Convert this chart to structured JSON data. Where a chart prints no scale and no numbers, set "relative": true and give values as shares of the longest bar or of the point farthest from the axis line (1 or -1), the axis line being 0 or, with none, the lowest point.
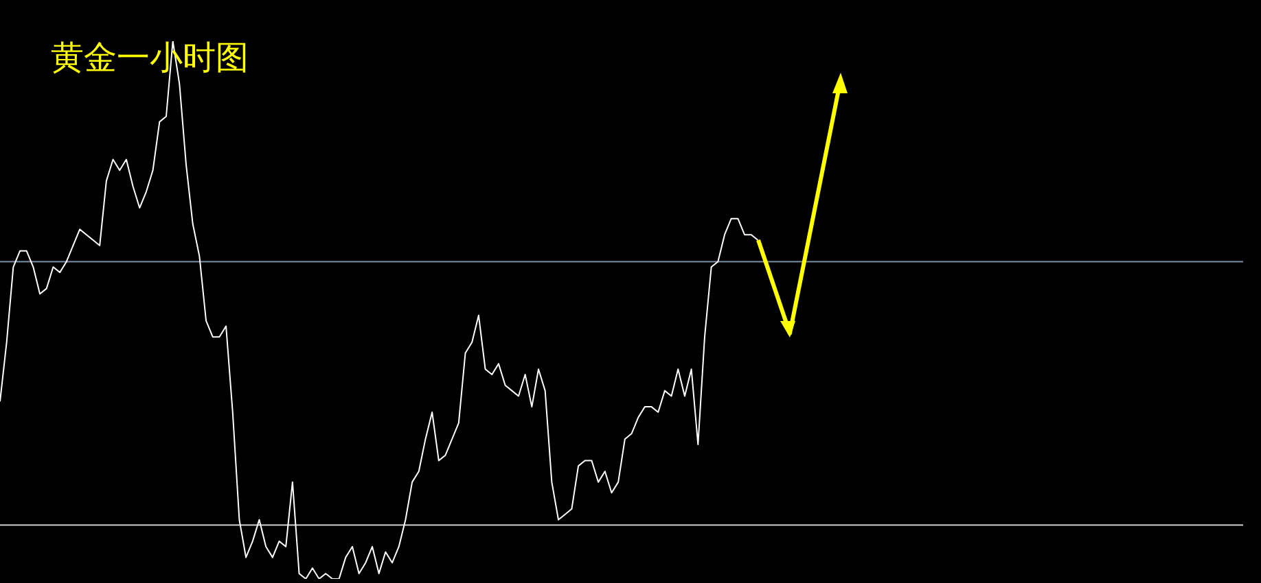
{
  "chart_data": {
    "type": "line",
    "title": "黄金一小时图",
    "relative": true,
    "grid": false,
    "legend": false,
    "marker": "none",
    "line_style": "solid",
    "categories": [
      null,
      null,
      null,
      null,
      null,
      null,
      null,
      null,
      null,
      null,
      null,
      null,
      null,
      null,
      null,
      null,
      null,
      null,
      null,
      null,
      null,
      null,
      null,
      null,
      null,
      null,
      null,
      null,
      null,
      null,
      null,
      null,
      null,
      null,
      null,
      null,
      null,
      null,
      null,
      null,
      null,
      null,
      null,
      null,
      null,
      null,
      null,
      null,
      null,
      null,
      null,
      null,
      null,
      null,
      null,
      null,
      null,
      null,
      null,
      null,
      null,
      null,
      null,
      null,
      null,
      null,
      null,
      null,
      null,
      null,
      null,
      null,
      null,
      null,
      null,
      null,
      null,
      null,
      null,
      null,
      null,
      null,
      null,
      null,
      null,
      null,
      null,
      null,
      null,
      null,
      null,
      null,
      null,
      null,
      null,
      null,
      null,
      null,
      null,
      null,
      null,
      null,
      null,
      null,
      null,
      null,
      null,
      null,
      null,
      null,
      null,
      null,
      null,
      null,
      null,
      null,
      null,
      null,
      null,
      null,
      null,
      null,
      null,
      null,
      null,
      null,
      null,
      null,
      null,
      null,
      null,
      null,
      null,
      null,
      null,
      null,
      null,
      null,
      null,
      null,
      null,
      null,
      null,
      null,
      null,
      null,
      null,
      null,
      null,
      null,
      null,
      null,
      null,
      null,
      null,
      null,
      null,
      null,
      null,
      null,
      null,
      null,
      null,
      null,
      null,
      null,
      null,
      null,
      null,
      null,
      null,
      null,
      null,
      null,
      null,
      null,
      null,
      null,
      null,
      null,
      null,
      null,
      null,
      null,
      null,
      null,
      null,
      null
    ],
    "series": [
      {
        "color": "#ffffff",
        "values": [
          0.33,
          0.44,
          0.58,
          0.61,
          0.61,
          0.58,
          0.53,
          0.54,
          0.58,
          0.57,
          0.59,
          0.62,
          0.65,
          0.64,
          0.63,
          0.62,
          0.74,
          0.78,
          0.76,
          0.78,
          0.73,
          0.69,
          0.72,
          0.76,
          0.85,
          0.86,
          1,
          0.92,
          0.77,
          0.66,
          0.6,
          0.48,
          0.45,
          0.45,
          0.47,
          0.31,
          0.11,
          0.04,
          0.07,
          0.11,
          0.06,
          0.04,
          0.07,
          0.06,
          0.18,
          0.01,
          0,
          0.02,
          0,
          0.01,
          0,
          0,
          0.04,
          0.06,
          0.01,
          0.03,
          0.06,
          0.01,
          0.05,
          0.03,
          0.06,
          0.11,
          0.18,
          0.2,
          0.26,
          0.31,
          0.22,
          0.23,
          0.26,
          0.29,
          0.42,
          0.44,
          0.49,
          0.39,
          0.38,
          0.4,
          0.36,
          0.35,
          0.34,
          0.38,
          0.32,
          0.39,
          0.35,
          0.18,
          0.11,
          0.12,
          0.13,
          0.21,
          0.22,
          0.22,
          0.18,
          0.2,
          0.16,
          0.18,
          0.26,
          0.27,
          0.3,
          0.32,
          0.32,
          0.31,
          0.35,
          0.34,
          0.39,
          0.34,
          0.39,
          0.25,
          0.45,
          0.58,
          0.59,
          0.64,
          0.67,
          0.67,
          0.64,
          0.64,
          0.63,
          null,
          null,
          null,
          null,
          null,
          null,
          null,
          null,
          null,
          null,
          null,
          null,
          null,
          null,
          null,
          null,
          null,
          null,
          null,
          null,
          null,
          null,
          null,
          null,
          null,
          null,
          null,
          null,
          null,
          null,
          null,
          null,
          null,
          null,
          null,
          null,
          null,
          null,
          null,
          null,
          null,
          null,
          null,
          null,
          null,
          null,
          null,
          null,
          null,
          null,
          null,
          null,
          null,
          null,
          null,
          null,
          null,
          null,
          null,
          null,
          null,
          null,
          null,
          null,
          null,
          null,
          null,
          null,
          null,
          null,
          null,
          null,
          null
        ]
      }
    ],
    "ref_lines": [
      {
        "axis": "y",
        "value": 0.59,
        "color": "#7f8fa6"
      },
      {
        "axis": "y",
        "value": 0.1,
        "color": "#d0d0d0"
      }
    ]
  }
}
